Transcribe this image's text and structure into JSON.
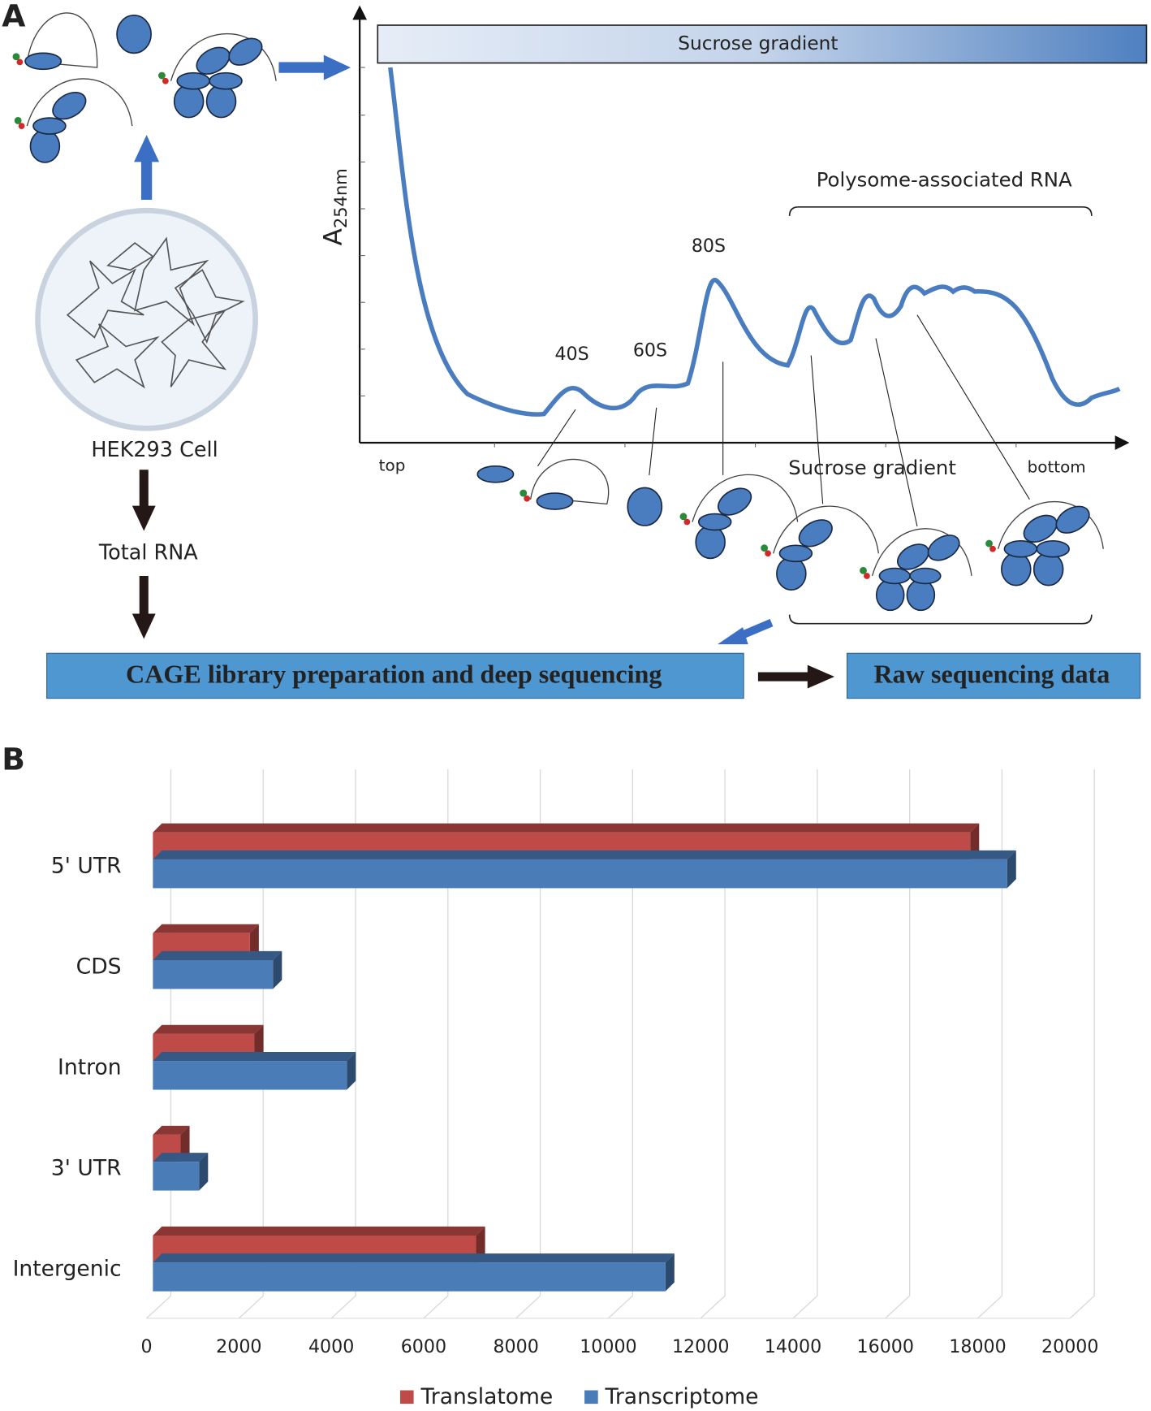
{
  "panel_a": {
    "label": "A",
    "gradient_bar": "Sucrose gradient",
    "y_axis_label": "A",
    "y_axis_label_sub": "254nm",
    "polysome_label": "Polysome-associated RNA",
    "peak_labels": [
      "40S",
      "60S",
      "80S"
    ],
    "x_start": "top",
    "x_middle": "Sucrose gradient",
    "x_end": "bottom",
    "cell_label": "HEK293 Cell",
    "rna_label": "Total RNA",
    "library_box": "CAGE library preparation and deep sequencing",
    "data_box": "Raw sequencing data"
  },
  "chart_data": {
    "type": "bar3d-horizontal",
    "panel_label": "B",
    "categories": [
      "5' UTR",
      "CDS",
      "Intron",
      "3' UTR",
      "Intergenic"
    ],
    "series": [
      {
        "name": "Translatome",
        "color": "#be4b48",
        "values": [
          17700,
          2100,
          2200,
          600,
          7000
        ]
      },
      {
        "name": "Transcriptome",
        "color": "#4a7cb8",
        "values": [
          18500,
          2600,
          4200,
          1000,
          11100
        ]
      }
    ],
    "xlim": [
      0,
      20000
    ],
    "xticks": [
      0,
      2000,
      4000,
      6000,
      8000,
      10000,
      12000,
      14000,
      16000,
      18000,
      20000
    ],
    "grid": true,
    "legend": "bottom"
  }
}
